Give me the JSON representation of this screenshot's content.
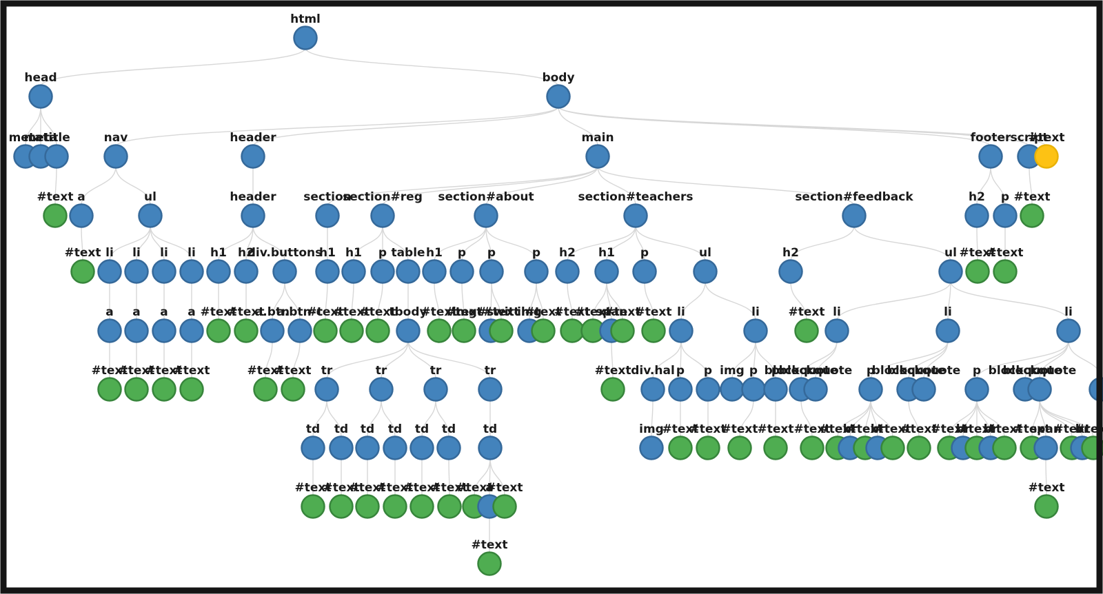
{
  "diagram": {
    "kind": "dom-tree",
    "colors": {
      "element_fill": "#4383bc",
      "element_stroke": "#35699a",
      "text_fill": "#4fad51",
      "text_stroke": "#37853b",
      "highlight_fill": "#fdc214",
      "highlight_stroke": "#e9b207",
      "edge": "#d7d7d7",
      "frame": "#151515",
      "background": "#ffffff"
    },
    "node_format": [
      "id",
      "parent_id",
      "label",
      "type(e=element,t=text,y=highlighted-text)",
      "x",
      "y"
    ],
    "nodes": [
      [
        1,
        null,
        "html",
        "e",
        443,
        55
      ],
      [
        2,
        1,
        "head",
        "e",
        59,
        140
      ],
      [
        3,
        1,
        "body",
        "e",
        810,
        140
      ],
      [
        4,
        2,
        "meta",
        "e",
        37,
        227
      ],
      [
        5,
        2,
        "meta",
        "e",
        59,
        227
      ],
      [
        6,
        2,
        "title",
        "e",
        82,
        227
      ],
      [
        7,
        6,
        "#text",
        "t",
        80,
        313
      ],
      [
        8,
        3,
        "nav",
        "e",
        168,
        227
      ],
      [
        9,
        3,
        "header",
        "e",
        367,
        227
      ],
      [
        10,
        3,
        "main",
        "e",
        867,
        227
      ],
      [
        11,
        3,
        "footer",
        "e",
        1437,
        227
      ],
      [
        12,
        3,
        "script",
        "e",
        1493,
        227
      ],
      [
        13,
        3,
        "#text",
        "y",
        1518,
        227
      ],
      [
        14,
        8,
        "a",
        "e",
        118,
        313
      ],
      [
        15,
        8,
        "ul",
        "e",
        218,
        313
      ],
      [
        16,
        14,
        "#text",
        "t",
        120,
        394
      ],
      [
        17,
        15,
        "li",
        "e",
        159,
        394
      ],
      [
        18,
        15,
        "li",
        "e",
        198,
        394
      ],
      [
        19,
        15,
        "li",
        "e",
        238,
        394
      ],
      [
        20,
        15,
        "li",
        "e",
        278,
        394
      ],
      [
        21,
        17,
        "a",
        "e",
        159,
        480
      ],
      [
        22,
        18,
        "a",
        "e",
        198,
        480
      ],
      [
        23,
        19,
        "a",
        "e",
        238,
        480
      ],
      [
        24,
        20,
        "a",
        "e",
        278,
        480
      ],
      [
        25,
        21,
        "#text",
        "t",
        159,
        565
      ],
      [
        26,
        22,
        "#text",
        "t",
        198,
        565
      ],
      [
        27,
        23,
        "#text",
        "t",
        238,
        565
      ],
      [
        28,
        24,
        "#text",
        "t",
        278,
        565
      ],
      [
        29,
        9,
        "header",
        "e",
        367,
        313
      ],
      [
        30,
        29,
        "h1",
        "e",
        317,
        394
      ],
      [
        31,
        29,
        "h2",
        "e",
        357,
        394
      ],
      [
        32,
        29,
        "div.buttons",
        "e",
        413,
        394
      ],
      [
        33,
        30,
        "#text",
        "t",
        317,
        480
      ],
      [
        34,
        31,
        "#text",
        "t",
        357,
        480
      ],
      [
        35,
        32,
        "a.btn",
        "e",
        395,
        480
      ],
      [
        36,
        32,
        "a.btn-c",
        "e",
        435,
        480
      ],
      [
        37,
        35,
        "#text",
        "t",
        385,
        565
      ],
      [
        38,
        36,
        "#text",
        "t",
        425,
        565
      ],
      [
        39,
        10,
        "section",
        "e",
        475,
        313
      ],
      [
        40,
        39,
        "h1",
        "e",
        475,
        394
      ],
      [
        41,
        40,
        "#text",
        "t",
        472,
        480
      ],
      [
        42,
        10,
        "section#reg",
        "e",
        555,
        313
      ],
      [
        43,
        42,
        "h1",
        "e",
        513,
        394
      ],
      [
        44,
        43,
        "#text",
        "t",
        510,
        480
      ],
      [
        45,
        42,
        "p",
        "e",
        555,
        394
      ],
      [
        46,
        45,
        "#text",
        "t",
        548,
        480
      ],
      [
        47,
        42,
        "table",
        "e",
        592,
        394
      ],
      [
        48,
        47,
        "tbody",
        "e",
        592,
        480
      ],
      [
        49,
        48,
        "tr",
        "e",
        474,
        565
      ],
      [
        50,
        48,
        "tr",
        "e",
        553,
        565
      ],
      [
        51,
        48,
        "tr",
        "e",
        632,
        565
      ],
      [
        52,
        48,
        "tr",
        "e",
        711,
        565
      ],
      [
        53,
        49,
        "td",
        "e",
        454,
        650
      ],
      [
        54,
        49,
        "td",
        "e",
        495,
        650
      ],
      [
        55,
        50,
        "td",
        "e",
        533,
        650
      ],
      [
        56,
        50,
        "td",
        "e",
        573,
        650
      ],
      [
        57,
        51,
        "td",
        "e",
        612,
        650
      ],
      [
        58,
        51,
        "td",
        "e",
        651,
        650
      ],
      [
        59,
        52,
        "td",
        "e",
        711,
        650
      ],
      [
        60,
        53,
        "#text",
        "t",
        454,
        735
      ],
      [
        61,
        54,
        "#text",
        "t",
        495,
        735
      ],
      [
        62,
        55,
        "#text",
        "t",
        533,
        735
      ],
      [
        63,
        56,
        "#text",
        "t",
        573,
        735
      ],
      [
        64,
        57,
        "#text",
        "t",
        612,
        735
      ],
      [
        65,
        58,
        "#text",
        "t",
        652,
        735
      ],
      [
        66,
        59,
        "#text",
        "t",
        688,
        735
      ],
      [
        67,
        59,
        "a",
        "e",
        710,
        735
      ],
      [
        68,
        59,
        "#text",
        "t",
        732,
        735
      ],
      [
        69,
        67,
        "#text",
        "t",
        710,
        818
      ],
      [
        70,
        10,
        "section#about",
        "e",
        705,
        313
      ],
      [
        71,
        70,
        "h1",
        "e",
        630,
        394
      ],
      [
        72,
        71,
        "#text",
        "t",
        637,
        480
      ],
      [
        73,
        70,
        "p",
        "e",
        670,
        394
      ],
      [
        74,
        73,
        "#text",
        "t",
        673,
        480
      ],
      [
        75,
        70,
        "p",
        "e",
        713,
        394
      ],
      [
        76,
        75,
        "img#switch",
        "e",
        712,
        480
      ],
      [
        77,
        75,
        "#text",
        "t",
        727,
        480
      ],
      [
        78,
        70,
        "p",
        "e",
        778,
        394
      ],
      [
        79,
        78,
        "img",
        "e",
        768,
        480
      ],
      [
        80,
        78,
        "#text",
        "t",
        788,
        480
      ],
      [
        81,
        10,
        "section#teachers",
        "e",
        922,
        313
      ],
      [
        82,
        81,
        "h2",
        "e",
        823,
        394
      ],
      [
        83,
        82,
        "#text",
        "t",
        830,
        480
      ],
      [
        84,
        81,
        "h1",
        "e",
        880,
        394
      ],
      [
        85,
        84,
        "#text",
        "t",
        860,
        480
      ],
      [
        86,
        84,
        "span",
        "e",
        887,
        480
      ],
      [
        87,
        84,
        "#text",
        "t",
        903,
        480
      ],
      [
        88,
        86,
        "#text",
        "t",
        889,
        565
      ],
      [
        89,
        81,
        "p",
        "e",
        935,
        394
      ],
      [
        90,
        89,
        "#text",
        "t",
        948,
        480
      ],
      [
        91,
        81,
        "ul",
        "e",
        1023,
        394
      ],
      [
        92,
        91,
        "li",
        "e",
        988,
        480
      ],
      [
        93,
        91,
        "li",
        "e",
        1096,
        480
      ],
      [
        94,
        92,
        "div.hal",
        "e",
        947,
        565
      ],
      [
        95,
        92,
        "p",
        "e",
        987,
        565
      ],
      [
        96,
        92,
        "p",
        "e",
        1027,
        565
      ],
      [
        97,
        94,
        "img",
        "e",
        945,
        650
      ],
      [
        98,
        95,
        "#text",
        "t",
        987,
        650
      ],
      [
        99,
        96,
        "#text",
        "t",
        1027,
        650
      ],
      [
        100,
        93,
        "img",
        "e",
        1062,
        565
      ],
      [
        101,
        93,
        "p",
        "e",
        1093,
        565
      ],
      [
        102,
        93,
        "p",
        "e",
        1125,
        565
      ],
      [
        103,
        101,
        "#text",
        "t",
        1073,
        650
      ],
      [
        104,
        102,
        "#text",
        "t",
        1125,
        650
      ],
      [
        105,
        10,
        "section#feedback",
        "e",
        1239,
        313
      ],
      [
        106,
        105,
        "h2",
        "e",
        1147,
        394
      ],
      [
        107,
        106,
        "#text",
        "t",
        1170,
        480
      ],
      [
        108,
        105,
        "ul",
        "e",
        1379,
        394
      ],
      [
        109,
        108,
        "li",
        "e",
        1214,
        480
      ],
      [
        110,
        108,
        "li",
        "e",
        1375,
        480
      ],
      [
        111,
        108,
        "li",
        "e",
        1550,
        480
      ],
      [
        112,
        109,
        "blockquote",
        "e",
        1162,
        565
      ],
      [
        113,
        109,
        "blockquote",
        "e",
        1183,
        565
      ],
      [
        114,
        112,
        "#text",
        "t",
        1178,
        650
      ],
      [
        115,
        110,
        "p",
        "e",
        1263,
        565
      ],
      [
        116,
        110,
        "blockquote",
        "e",
        1318,
        565
      ],
      [
        117,
        110,
        "blockquote",
        "e",
        1340,
        565
      ],
      [
        118,
        115,
        "#text",
        "t",
        1215,
        650
      ],
      [
        119,
        115,
        "br",
        "e",
        1233,
        650
      ],
      [
        120,
        115,
        "#text",
        "t",
        1255,
        650
      ],
      [
        121,
        115,
        "br",
        "e",
        1273,
        650
      ],
      [
        122,
        115,
        "#text",
        "t",
        1295,
        650
      ],
      [
        123,
        116,
        "#text",
        "t",
        1333,
        650
      ],
      [
        124,
        111,
        "p",
        "e",
        1417,
        565
      ],
      [
        125,
        111,
        "blockquote",
        "e",
        1487,
        565
      ],
      [
        126,
        111,
        "blockquote",
        "e",
        1508,
        565
      ],
      [
        127,
        111,
        "",
        "e",
        1597,
        565
      ],
      [
        128,
        124,
        "#text",
        "t",
        1377,
        650
      ],
      [
        129,
        124,
        "br",
        "e",
        1397,
        650
      ],
      [
        130,
        124,
        "#text",
        "t",
        1417,
        650
      ],
      [
        131,
        124,
        "br",
        "e",
        1437,
        650
      ],
      [
        132,
        124,
        "#text",
        "t",
        1457,
        650
      ],
      [
        133,
        126,
        "#text",
        "t",
        1497,
        650
      ],
      [
        134,
        126,
        "span",
        "e",
        1517,
        650
      ],
      [
        135,
        126,
        "#text",
        "t",
        1555,
        650
      ],
      [
        136,
        126,
        "br",
        "e",
        1570,
        650
      ],
      [
        137,
        126,
        "#text",
        "t",
        1586,
        650
      ],
      [
        138,
        134,
        "#text",
        "t",
        1518,
        735
      ],
      [
        139,
        11,
        "h2",
        "e",
        1417,
        313
      ],
      [
        140,
        11,
        "p",
        "e",
        1458,
        313
      ],
      [
        141,
        139,
        "#text",
        "t",
        1418,
        394
      ],
      [
        142,
        140,
        "#text",
        "t",
        1458,
        394
      ],
      [
        143,
        12,
        "#text",
        "t",
        1497,
        313
      ]
    ]
  }
}
